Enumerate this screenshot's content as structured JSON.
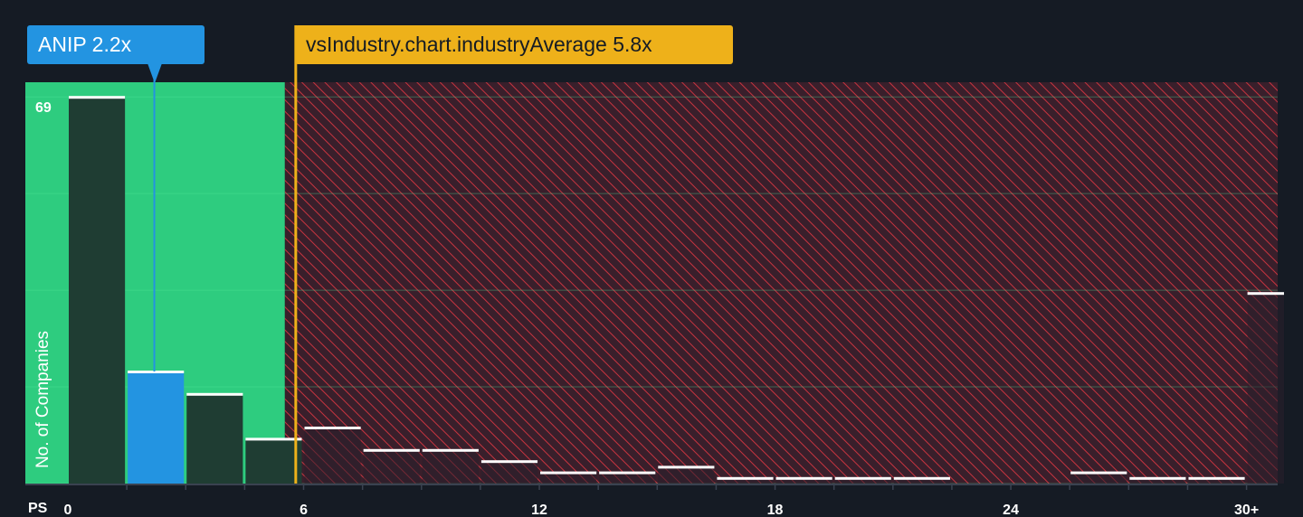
{
  "chart_data": {
    "type": "bar",
    "title": "",
    "xlabel": "PS",
    "ylabel": "No. of Companies",
    "y_max_label": "69",
    "ylim": [
      0,
      72
    ],
    "xlim": [
      0,
      31
    ],
    "x_ticks": [
      {
        "value": 0,
        "label": "0"
      },
      {
        "value": 6,
        "label": "6"
      },
      {
        "value": 12,
        "label": "12"
      },
      {
        "value": 18,
        "label": "18"
      },
      {
        "value": 24,
        "label": "24"
      },
      {
        "value": 30,
        "label": "30+"
      }
    ],
    "bins": [
      {
        "x0": 0.0,
        "x1": 1.5,
        "value": 69,
        "highlight": false
      },
      {
        "x0": 1.5,
        "x1": 3.0,
        "value": 20,
        "highlight": true
      },
      {
        "x0": 3.0,
        "x1": 4.5,
        "value": 16,
        "highlight": false
      },
      {
        "x0": 4.5,
        "x1": 6.0,
        "value": 8,
        "highlight": false
      },
      {
        "x0": 6.0,
        "x1": 7.5,
        "value": 10,
        "highlight": false
      },
      {
        "x0": 7.5,
        "x1": 9.0,
        "value": 6,
        "highlight": false
      },
      {
        "x0": 9.0,
        "x1": 10.5,
        "value": 6,
        "highlight": false
      },
      {
        "x0": 10.5,
        "x1": 12.0,
        "value": 4,
        "highlight": false
      },
      {
        "x0": 12.0,
        "x1": 13.5,
        "value": 2,
        "highlight": false
      },
      {
        "x0": 13.5,
        "x1": 15.0,
        "value": 2,
        "highlight": false
      },
      {
        "x0": 15.0,
        "x1": 16.5,
        "value": 3,
        "highlight": false
      },
      {
        "x0": 16.5,
        "x1": 18.0,
        "value": 1,
        "highlight": false
      },
      {
        "x0": 18.0,
        "x1": 19.5,
        "value": 1,
        "highlight": false
      },
      {
        "x0": 19.5,
        "x1": 21.0,
        "value": 1,
        "highlight": false
      },
      {
        "x0": 21.0,
        "x1": 22.5,
        "value": 1,
        "highlight": false
      },
      {
        "x0": 22.5,
        "x1": 24.0,
        "value": 0,
        "highlight": false
      },
      {
        "x0": 24.0,
        "x1": 25.5,
        "value": 0,
        "highlight": false
      },
      {
        "x0": 25.5,
        "x1": 27.0,
        "value": 2,
        "highlight": false
      },
      {
        "x0": 27.0,
        "x1": 28.5,
        "value": 1,
        "highlight": false
      },
      {
        "x0": 28.5,
        "x1": 30.0,
        "value": 1,
        "highlight": false
      },
      {
        "x0": 30.0,
        "x1": 31.0,
        "value": 34,
        "highlight": false
      }
    ],
    "company": {
      "name": "ANIP",
      "value": 2.2,
      "label": "ANIP 2.2x"
    },
    "industry_average": {
      "value": 5.8,
      "label": "vsIndustry.chart.industryAverage 5.8x"
    },
    "colors": {
      "background": "#151b24",
      "good_zone": "#2ecc7f",
      "bad_zone": "#391f2b",
      "hatch": "#c8343f",
      "bar": "#1f3d33",
      "bar_bad": "#2a1f2b",
      "bar_highlight": "#2394e1",
      "bar_cap": "#ffffff",
      "company_line": "#2394e1",
      "industry_line": "#eeb11a",
      "gridline": "#4fe79a",
      "axis": "#3a4250"
    }
  }
}
